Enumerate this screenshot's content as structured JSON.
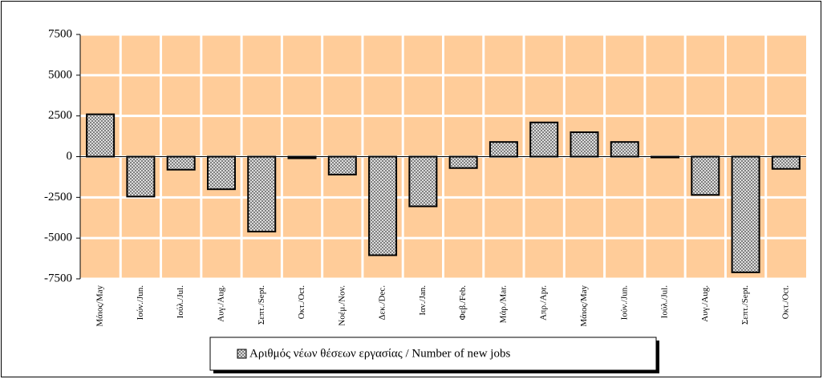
{
  "chart_data": {
    "type": "bar",
    "categories": [
      "Μάιος/May",
      "Ιούν./Jun.",
      "Ιούλ./Jul.",
      "Αυγ./Aug.",
      "Σεπτ./Sept.",
      "Οκτ./Oct.",
      "Νοέμ./Nov.",
      "Δεκ./Dec.",
      "Ιαν./Jan.",
      "Φεβ./Feb.",
      "Μάρ./Mar.",
      "Απρ./Apr.",
      "Μάιος/May",
      "Ιούν./Jun.",
      "Ιούλ./Jul.",
      "Αυγ./Aug.",
      "Σεπτ./Sept.",
      "Οκτ./Oct."
    ],
    "series": [
      {
        "name": "Αριθμός νέων θέσεων εργασίας / Number of new jobs",
        "color": "#808080",
        "values": [
          2600,
          -2450,
          -800,
          -2000,
          -4600,
          -100,
          -1100,
          -6050,
          -3050,
          -700,
          900,
          2100,
          1500,
          900,
          -50,
          -2350,
          -7100,
          -750
        ]
      }
    ],
    "ylim": [
      -7500,
      7500
    ],
    "yticks": [
      7500,
      5000,
      2500,
      0,
      -2500,
      -5000,
      -7500
    ],
    "grid": true,
    "background": "#ffcc99",
    "legend": "bottom"
  }
}
